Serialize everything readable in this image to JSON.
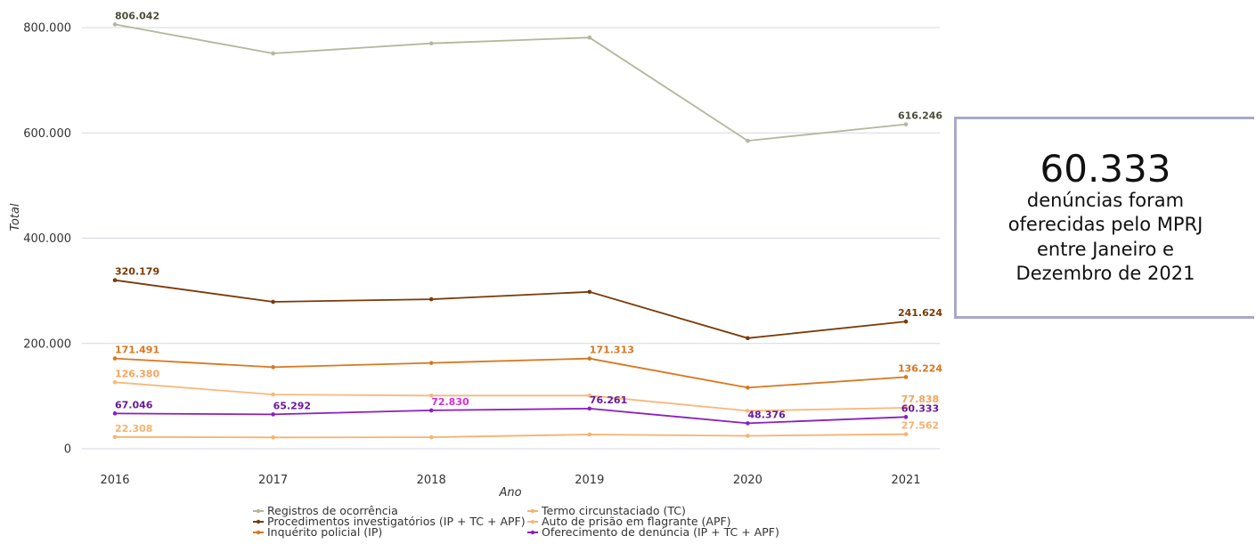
{
  "chart_data": {
    "type": "line",
    "xlabel": "Ano",
    "ylabel": "Total",
    "x": [
      "2016",
      "2017",
      "2018",
      "2019",
      "2020",
      "2021"
    ],
    "ylim": [
      0,
      800000
    ],
    "yticks": [
      0,
      200000,
      400000,
      600000,
      800000
    ],
    "ytick_labels": [
      "0",
      "200.000",
      "400.000",
      "600.000",
      "800.000"
    ],
    "grid": true,
    "legend_position": "bottom",
    "series": [
      {
        "name": "Registros de ocorrência",
        "color": "#b2b89a",
        "values": [
          806042,
          751000,
          770000,
          781000,
          585000,
          616246
        ],
        "labels": [
          "806.042",
          "",
          "",
          "",
          "",
          "616.246"
        ],
        "label_color": "#4d4d3a"
      },
      {
        "name": "Procedimentos investigatórios (IP + TC + APF)",
        "color": "#7a3a06",
        "values": [
          320179,
          279000,
          284000,
          298000,
          210000,
          241624
        ],
        "labels": [
          "320.179",
          "",
          "",
          "",
          "",
          "241.624"
        ],
        "label_color": "#7a3a06"
      },
      {
        "name": "Inquérito policial (IP)",
        "color": "#d9771e",
        "values": [
          171491,
          155000,
          163000,
          171313,
          116000,
          136224
        ],
        "labels": [
          "171.491",
          "",
          "",
          "171.313",
          "",
          "136.224"
        ],
        "label_color": "#d9771e"
      },
      {
        "name": "Termo circunstaciado (TC)",
        "color": "#f7b26e",
        "values": [
          22308,
          21500,
          21800,
          27000,
          24500,
          27562
        ],
        "labels": [
          "22.308",
          "",
          "",
          "",
          "",
          "27.562"
        ],
        "label_color": "#f7b26e"
      },
      {
        "name": "Auto de prisão em flagrante (APF)",
        "color": "#f9b77a",
        "values": [
          126380,
          103000,
          101000,
          101000,
          72000,
          77838
        ],
        "labels": [
          "126.380",
          "",
          "",
          "",
          "",
          "77.838"
        ],
        "label_color": "#f4a460"
      },
      {
        "name": "Oferecimento de denúncia (IP + TC + APF)",
        "color": "#8a1fc0",
        "values": [
          67046,
          65292,
          72830,
          76261,
          48376,
          60333
        ],
        "labels": [
          "67.046",
          "65.292",
          "72.830",
          "76.261",
          "48.376",
          "60.333"
        ],
        "label_color": "#8a1fc0",
        "label_colors": [
          "#6a1a9a",
          "#6a1a9a",
          "#d62fd6",
          "#6a1a9a",
          "#6a1a9a",
          "#6a1a9a"
        ]
      }
    ]
  },
  "kpi": {
    "value": "60.333",
    "text": "denúncias foram oferecidas pelo MPRJ entre Janeiro e Dezembro de 2021"
  }
}
